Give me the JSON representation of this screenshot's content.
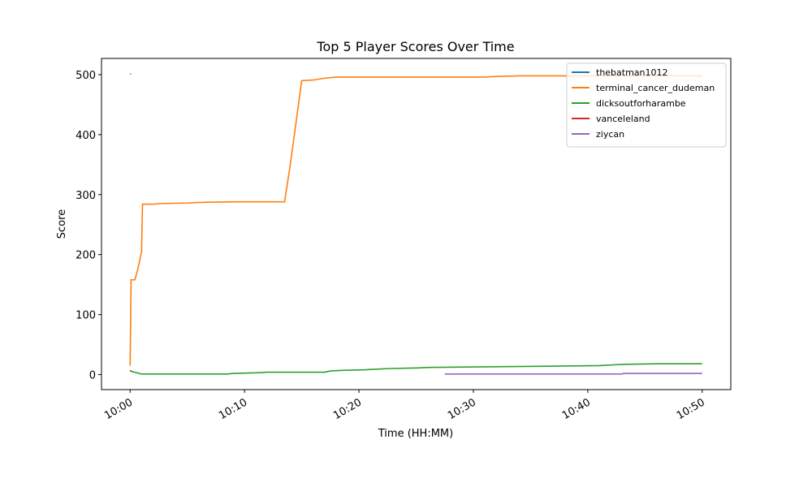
{
  "chart_data": {
    "type": "line",
    "title": "Top 5 Player Scores Over Time",
    "xlabel": "Time (HH:MM)",
    "ylabel": "Score",
    "xlim": [
      "09:57:30",
      "10:52:30"
    ],
    "xticks": [
      "10:00",
      "10:10",
      "10:20",
      "10:30",
      "10:40",
      "10:50"
    ],
    "ylim": [
      -25,
      527
    ],
    "yticks": [
      0,
      100,
      200,
      300,
      400,
      500
    ],
    "legend": "upper right",
    "series": [
      {
        "name": "thebatman1012",
        "color": "#1f77b4",
        "x": [
          "10:00:00",
          "10:00:05"
        ],
        "values": [
          501,
          501
        ]
      },
      {
        "name": "terminal_cancer_dudeman",
        "color": "#ff7f0e",
        "x": [
          "10:00:00",
          "10:00:05",
          "10:00:25",
          "10:00:40",
          "10:01:00",
          "10:01:05",
          "10:02:00",
          "10:02:30",
          "10:05:00",
          "10:06:00",
          "10:09:00",
          "10:13:30",
          "10:14:00",
          "10:15:00",
          "10:16:00",
          "10:17:00",
          "10:18:00",
          "10:31:00",
          "10:32:00",
          "10:34:00",
          "10:50:00"
        ],
        "values": [
          15,
          158,
          158,
          175,
          205,
          284,
          284,
          285,
          286,
          287,
          288,
          288,
          350,
          490,
          491,
          494,
          496,
          496,
          497,
          498,
          498
        ]
      },
      {
        "name": "dicksoutforharambe",
        "color": "#2ca02c",
        "x": [
          "10:00:00",
          "10:01:00",
          "10:08:30",
          "10:09:00",
          "10:11:00",
          "10:12:00",
          "10:17:00",
          "10:17:30",
          "10:18:30",
          "10:20:30",
          "10:22:30",
          "10:25:00",
          "10:26:00",
          "10:31:00",
          "10:36:30",
          "10:41:00",
          "10:43:00",
          "10:46:00",
          "10:50:00"
        ],
        "values": [
          6,
          1,
          1,
          2,
          3,
          4,
          4,
          6,
          7,
          8,
          10,
          11,
          12,
          13,
          14,
          15,
          17,
          18,
          18
        ]
      },
      {
        "name": "vanceleland",
        "color": "#d62728",
        "x": [
          "10:00:00",
          "10:00:05"
        ],
        "values": [
          7,
          6
        ]
      },
      {
        "name": "ziycan",
        "color": "#9467bd",
        "x": [
          "10:27:30",
          "10:43:00",
          "10:43:05",
          "10:50:00"
        ],
        "values": [
          1,
          1,
          2,
          2
        ]
      }
    ]
  }
}
